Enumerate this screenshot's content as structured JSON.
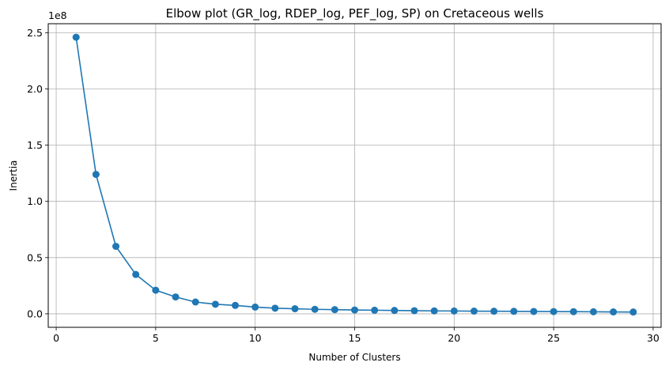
{
  "chart_data": {
    "type": "line",
    "title": "Elbow plot (GR_log, RDEP_log, PEF_log, SP) on Cretaceous wells",
    "xlabel": "Number of Clusters",
    "ylabel": "Inertia",
    "y_offset_label": "1e8",
    "y_unit_scale": 100000000,
    "xlim": [
      -0.4,
      30.4
    ],
    "ylim": [
      -0.12,
      2.58
    ],
    "x_ticks": [
      0,
      5,
      10,
      15,
      20,
      25,
      30
    ],
    "x_tick_labels": [
      "0",
      "5",
      "10",
      "15",
      "20",
      "25",
      "30"
    ],
    "y_ticks": [
      0.0,
      0.5,
      1.0,
      1.5,
      2.0,
      2.5
    ],
    "y_tick_labels": [
      "0.0",
      "0.5",
      "1.0",
      "1.5",
      "2.0",
      "2.5"
    ],
    "grid": true,
    "color": "#1f77b4",
    "series": [
      {
        "x": [
          1,
          2,
          3,
          4,
          5,
          6,
          7,
          8,
          9,
          10,
          11,
          12,
          13,
          14,
          15,
          16,
          17,
          18,
          19,
          20,
          21,
          22,
          23,
          24,
          25,
          26,
          27,
          28,
          29
        ],
        "values": [
          2.46,
          1.24,
          0.6,
          0.35,
          0.21,
          0.15,
          0.105,
          0.085,
          0.075,
          0.06,
          0.05,
          0.045,
          0.04,
          0.037,
          0.034,
          0.032,
          0.03,
          0.028,
          0.026,
          0.025,
          0.024,
          0.023,
          0.022,
          0.021,
          0.02,
          0.019,
          0.018,
          0.017,
          0.016
        ]
      }
    ]
  }
}
